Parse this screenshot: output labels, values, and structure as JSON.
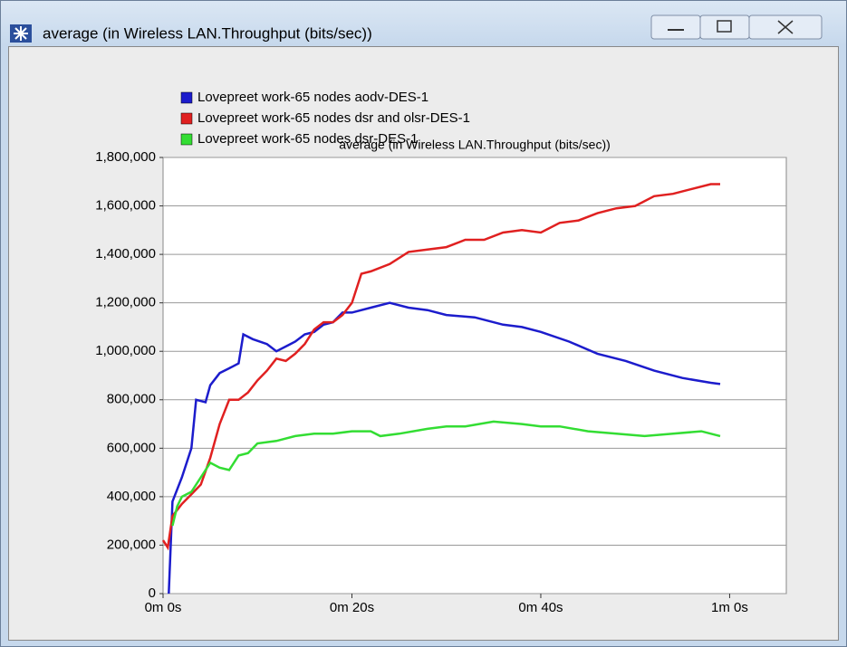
{
  "window": {
    "title": "average (in Wireless LAN.Throughput (bits/sec))"
  },
  "chart_data": {
    "type": "line",
    "title": "average (in Wireless LAN.Throughput (bits/sec))",
    "xlim": [
      0,
      66
    ],
    "ylim": [
      0,
      1800000
    ],
    "xticks": [
      {
        "value": 0,
        "label": "0m 0s"
      },
      {
        "value": 20,
        "label": "0m 20s"
      },
      {
        "value": 40,
        "label": "0m 40s"
      },
      {
        "value": 60,
        "label": "1m 0s"
      }
    ],
    "yticks": [
      0,
      {
        "value": 200000,
        "label": "200,000"
      },
      {
        "value": 400000,
        "label": "400,000"
      },
      {
        "value": 600000,
        "label": "600,000"
      },
      {
        "value": 800000,
        "label": "800,000"
      },
      {
        "value": 1000000,
        "label": "1,000,000"
      },
      {
        "value": 1200000,
        "label": "1,200,000"
      },
      {
        "value": 1400000,
        "label": "1,400,000"
      },
      {
        "value": 1600000,
        "label": "1,600,000"
      },
      {
        "value": 1800000,
        "label": "1,800,000"
      }
    ],
    "grid": true,
    "series": [
      {
        "name": "Lovepreet work-65 nodes aodv-DES-1",
        "color": "#1c1ccc",
        "x": [
          0.6,
          1,
          2,
          3,
          3.5,
          4.5,
          5,
          6,
          7,
          8,
          8.5,
          9.5,
          11,
          12,
          13,
          14,
          15,
          16,
          17,
          18,
          19,
          20,
          22,
          24,
          26,
          28,
          30,
          33,
          36,
          38,
          40,
          43,
          46,
          49,
          52,
          55,
          58,
          59
        ],
        "values": [
          0,
          380000,
          480000,
          600000,
          800000,
          790000,
          860000,
          910000,
          930000,
          950000,
          1070000,
          1050000,
          1030000,
          1000000,
          1020000,
          1040000,
          1070000,
          1080000,
          1110000,
          1120000,
          1160000,
          1160000,
          1180000,
          1200000,
          1180000,
          1170000,
          1150000,
          1140000,
          1110000,
          1100000,
          1080000,
          1040000,
          990000,
          960000,
          920000,
          890000,
          870000,
          865000
        ]
      },
      {
        "name": "Lovepreet work-65 nodes dsr and olsr-DES-1",
        "color": "#e02020",
        "x": [
          0,
          0.5,
          1,
          2,
          3,
          4,
          5,
          6,
          7,
          8,
          9,
          10,
          11,
          12,
          13,
          14,
          15,
          16,
          17,
          18,
          19,
          20,
          21,
          22,
          24,
          26,
          28,
          30,
          32,
          34,
          36,
          38,
          40,
          42,
          44,
          46,
          48,
          50,
          52,
          54,
          56,
          58,
          59
        ],
        "values": [
          220000,
          190000,
          320000,
          370000,
          410000,
          450000,
          560000,
          700000,
          800000,
          800000,
          830000,
          880000,
          920000,
          970000,
          960000,
          990000,
          1030000,
          1090000,
          1120000,
          1120000,
          1150000,
          1200000,
          1320000,
          1330000,
          1360000,
          1410000,
          1420000,
          1430000,
          1460000,
          1460000,
          1490000,
          1500000,
          1490000,
          1530000,
          1540000,
          1570000,
          1590000,
          1600000,
          1640000,
          1650000,
          1670000,
          1690000,
          1690000
        ]
      },
      {
        "name": "Lovepreet work-65 nodes dsr-DES-1",
        "color": "#33dd33",
        "x": [
          1,
          1.5,
          2,
          3,
          4,
          5,
          6,
          7,
          8,
          9,
          10,
          12,
          14,
          16,
          18,
          20,
          22,
          23,
          25,
          28,
          30,
          32,
          35,
          38,
          40,
          42,
          45,
          48,
          51,
          54,
          57,
          59
        ],
        "values": [
          280000,
          360000,
          400000,
          420000,
          480000,
          540000,
          520000,
          510000,
          570000,
          580000,
          620000,
          630000,
          650000,
          660000,
          660000,
          670000,
          670000,
          650000,
          660000,
          680000,
          690000,
          690000,
          710000,
          700000,
          690000,
          690000,
          670000,
          660000,
          650000,
          660000,
          670000,
          650000
        ]
      }
    ]
  }
}
